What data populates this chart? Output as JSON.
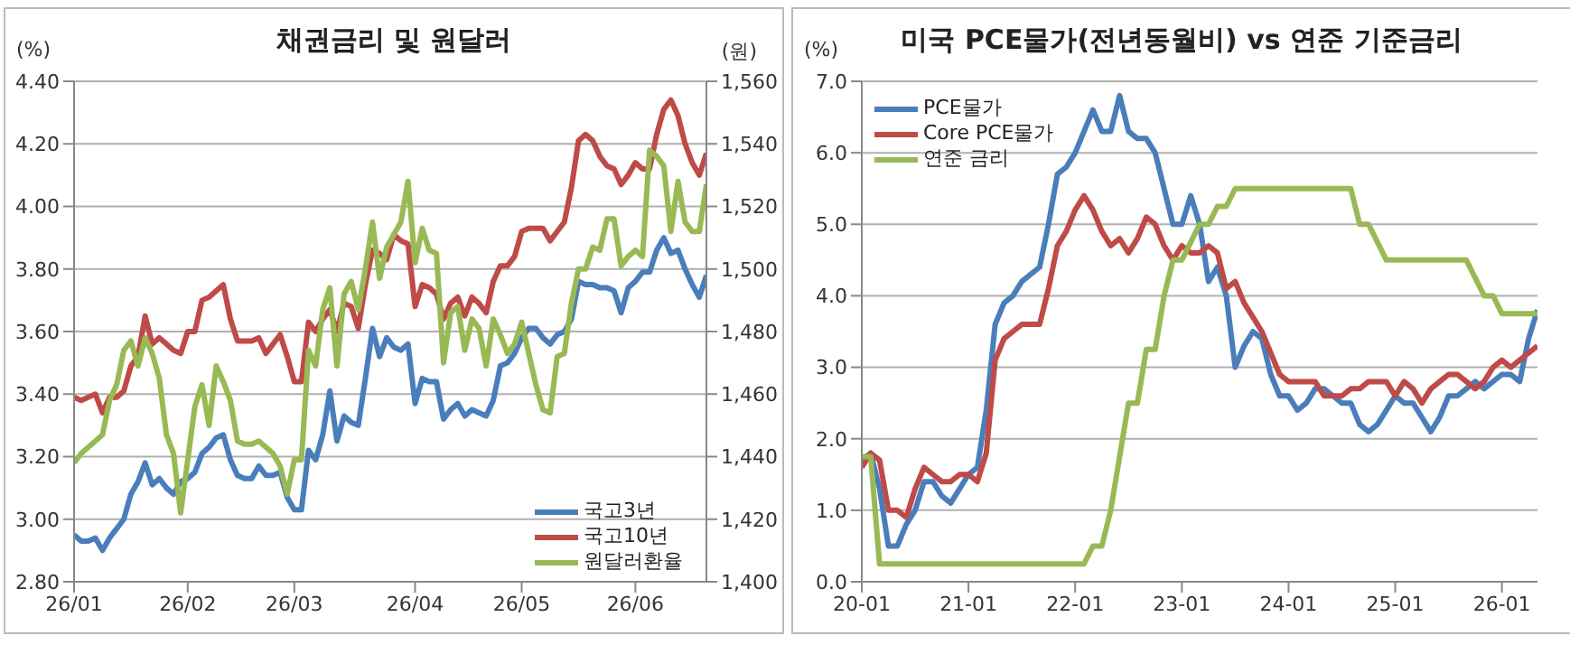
{
  "chart_data": [
    {
      "type": "line",
      "title": "채권금리 및 원달러",
      "ylabel": "(%)",
      "y2label": "(원)",
      "categories": [
        "26/01",
        null,
        null,
        null,
        null,
        null,
        null,
        null,
        null,
        null,
        null,
        null,
        null,
        null,
        null,
        null,
        "26/02",
        null,
        null,
        null,
        null,
        null,
        null,
        null,
        null,
        null,
        null,
        null,
        null,
        null,
        null,
        "26/03",
        null,
        null,
        null,
        null,
        null,
        null,
        null,
        null,
        null,
        null,
        null,
        null,
        null,
        null,
        null,
        null,
        "26/04",
        null,
        null,
        null,
        null,
        null,
        null,
        null,
        null,
        null,
        null,
        null,
        null,
        null,
        null,
        "26/05",
        null,
        null,
        null,
        null,
        null,
        null,
        null,
        null,
        null,
        null,
        null,
        null,
        null,
        null,
        null,
        "26/06",
        null,
        null,
        null,
        null,
        null,
        null,
        null,
        null,
        null,
        null
      ],
      "series": [
        {
          "name": "국고3년",
          "color": "#4a7ebb",
          "values": [
            2.95,
            2.93,
            2.93,
            2.94,
            2.9,
            2.94,
            2.97,
            3.0,
            3.08,
            3.12,
            3.18,
            3.11,
            3.13,
            3.1,
            3.08,
            3.12,
            3.13,
            3.15,
            3.21,
            3.23,
            3.26,
            3.27,
            3.19,
            3.14,
            3.13,
            3.13,
            3.17,
            3.14,
            3.14,
            3.15,
            3.07,
            3.03,
            3.03,
            3.22,
            3.19,
            3.27,
            3.41,
            3.25,
            3.33,
            3.31,
            3.3,
            3.45,
            3.61,
            3.52,
            3.58,
            3.55,
            3.54,
            3.56,
            3.37,
            3.45,
            3.44,
            3.44,
            3.32,
            3.35,
            3.37,
            3.33,
            3.35,
            3.34,
            3.33,
            3.38,
            3.49,
            3.5,
            3.53,
            3.58,
            3.61,
            3.61,
            3.58,
            3.56,
            3.59,
            3.6,
            3.64,
            3.76,
            3.75,
            3.75,
            3.74,
            3.74,
            3.73,
            3.66,
            3.74,
            3.76,
            3.79,
            3.79,
            3.86,
            3.9,
            3.85,
            3.86,
            3.8,
            3.75,
            3.71,
            3.78
          ]
        },
        {
          "name": "국고10년",
          "color": "#be4b48",
          "values": [
            3.39,
            3.38,
            3.39,
            3.4,
            3.34,
            3.39,
            3.39,
            3.41,
            3.49,
            3.52,
            3.65,
            3.56,
            3.58,
            3.56,
            3.54,
            3.53,
            3.6,
            3.6,
            3.7,
            3.71,
            3.73,
            3.75,
            3.64,
            3.57,
            3.57,
            3.57,
            3.58,
            3.53,
            3.56,
            3.59,
            3.52,
            3.44,
            3.44,
            3.63,
            3.6,
            3.64,
            3.67,
            3.6,
            3.69,
            3.68,
            3.61,
            3.75,
            3.86,
            3.85,
            3.83,
            3.91,
            3.89,
            3.88,
            3.68,
            3.75,
            3.74,
            3.72,
            3.64,
            3.69,
            3.71,
            3.65,
            3.71,
            3.69,
            3.66,
            3.76,
            3.81,
            3.81,
            3.84,
            3.92,
            3.93,
            3.93,
            3.93,
            3.89,
            3.92,
            3.95,
            4.06,
            4.21,
            4.23,
            4.21,
            4.16,
            4.13,
            4.12,
            4.07,
            4.1,
            4.14,
            4.12,
            4.12,
            4.23,
            4.31,
            4.34,
            4.29,
            4.2,
            4.14,
            4.1,
            4.17
          ]
        },
        {
          "name": "원달러환율",
          "color": "#98b954",
          "axis": "y2",
          "values": [
            1438,
            1441,
            1443,
            1445,
            1447,
            1458,
            1463,
            1474,
            1477,
            1469,
            1478,
            1473,
            1465,
            1447,
            1441,
            1422,
            1439,
            1456,
            1463,
            1450,
            1469,
            1464,
            1458,
            1445,
            1444,
            1444,
            1445,
            1443,
            1441,
            1437,
            1428,
            1439,
            1439,
            1474,
            1469,
            1487,
            1494,
            1469,
            1492,
            1496,
            1487,
            1500,
            1515,
            1497,
            1507,
            1511,
            1515,
            1528,
            1502,
            1513,
            1506,
            1505,
            1470,
            1486,
            1488,
            1474,
            1484,
            1481,
            1469,
            1484,
            1479,
            1473,
            1476,
            1483,
            1473,
            1463,
            1455,
            1454,
            1472,
            1473,
            1489,
            1500,
            1500,
            1507,
            1506,
            1516,
            1516,
            1501,
            1504,
            1506,
            1504,
            1538,
            1536,
            1533,
            1512,
            1528,
            1515,
            1512,
            1512,
            1527
          ]
        }
      ],
      "ylim": [
        2.8,
        4.4
      ],
      "yticks": [
        {
          "value": 2.8,
          "label": "2.80"
        },
        {
          "value": 3.0,
          "label": "3.00"
        },
        {
          "value": 3.2,
          "label": "3.20"
        },
        {
          "value": 3.4,
          "label": "3.40"
        },
        {
          "value": 3.6,
          "label": "3.60"
        },
        {
          "value": 3.8,
          "label": "3.80"
        },
        {
          "value": 4.0,
          "label": "4.00"
        },
        {
          "value": 4.2,
          "label": "4.20"
        },
        {
          "value": 4.4,
          "label": "4.40"
        }
      ],
      "y2lim": [
        1400,
        1560
      ],
      "y2ticks": [
        {
          "value": 1400,
          "label": "1,400"
        },
        {
          "value": 1420,
          "label": "1,420"
        },
        {
          "value": 1440,
          "label": "1,440"
        },
        {
          "value": 1460,
          "label": "1,460"
        },
        {
          "value": 1480,
          "label": "1,480"
        },
        {
          "value": 1500,
          "label": "1,500"
        },
        {
          "value": 1520,
          "label": "1,520"
        },
        {
          "value": 1540,
          "label": "1,540"
        },
        {
          "value": 1560,
          "label": "1,560"
        }
      ],
      "grid": "y",
      "legend": "bottom right",
      "marker": "none"
    },
    {
      "type": "line",
      "title": "미국 PCE물가(전년동월비) vs 연준 기준금리",
      "ylabel": "(%)",
      "categories": [
        "20-01",
        null,
        null,
        null,
        null,
        null,
        null,
        null,
        null,
        null,
        null,
        null,
        "21-01",
        null,
        null,
        null,
        null,
        null,
        null,
        null,
        null,
        null,
        null,
        null,
        "22-01",
        null,
        null,
        null,
        null,
        null,
        null,
        null,
        null,
        null,
        null,
        null,
        "23-01",
        null,
        null,
        null,
        null,
        null,
        null,
        null,
        null,
        null,
        null,
        null,
        "24-01",
        null,
        null,
        null,
        null,
        null,
        null,
        null,
        null,
        null,
        null,
        null,
        "25-01",
        null,
        null,
        null,
        null,
        null,
        null,
        null,
        null,
        null,
        null,
        null,
        "26-01",
        null,
        null,
        null,
        null
      ],
      "series": [
        {
          "name": "PCE물가",
          "color": "#4a7ebb",
          "values": [
            1.7,
            1.8,
            1.3,
            0.5,
            0.5,
            0.8,
            1.0,
            1.4,
            1.4,
            1.2,
            1.1,
            1.3,
            1.5,
            1.6,
            2.4,
            3.6,
            3.9,
            4.0,
            4.2,
            4.3,
            4.4,
            5.0,
            5.7,
            5.8,
            6.0,
            6.3,
            6.6,
            6.3,
            6.3,
            6.8,
            6.3,
            6.2,
            6.2,
            6.0,
            5.5,
            5.0,
            5.0,
            5.4,
            5.0,
            4.2,
            4.4,
            4.0,
            3.0,
            3.3,
            3.5,
            3.4,
            2.9,
            2.6,
            2.6,
            2.4,
            2.5,
            2.7,
            2.7,
            2.6,
            2.5,
            2.5,
            2.2,
            2.1,
            2.2,
            2.4,
            2.6,
            2.5,
            2.5,
            2.3,
            2.1,
            2.3,
            2.6,
            2.6,
            2.7,
            2.8,
            2.7,
            2.8,
            2.9,
            2.9,
            2.8,
            3.4,
            3.8
          ]
        },
        {
          "name": "Core PCE물가",
          "color": "#be4b48",
          "values": [
            1.6,
            1.8,
            1.7,
            1.0,
            1.0,
            0.9,
            1.3,
            1.6,
            1.5,
            1.4,
            1.4,
            1.5,
            1.5,
            1.4,
            1.8,
            3.1,
            3.4,
            3.5,
            3.6,
            3.6,
            3.6,
            4.1,
            4.7,
            4.9,
            5.2,
            5.4,
            5.2,
            4.9,
            4.7,
            4.8,
            4.6,
            4.8,
            5.1,
            5.0,
            4.7,
            4.5,
            4.7,
            4.6,
            4.6,
            4.7,
            4.6,
            4.1,
            4.2,
            3.9,
            3.7,
            3.5,
            3.2,
            2.9,
            2.8,
            2.8,
            2.8,
            2.8,
            2.6,
            2.6,
            2.6,
            2.7,
            2.7,
            2.8,
            2.8,
            2.8,
            2.6,
            2.8,
            2.7,
            2.5,
            2.7,
            2.8,
            2.9,
            2.9,
            2.8,
            2.7,
            2.8,
            3.0,
            3.1,
            3.0,
            3.1,
            3.2,
            3.3
          ]
        },
        {
          "name": "연준 금리",
          "color": "#98b954",
          "values": [
            1.75,
            1.75,
            0.25,
            0.25,
            0.25,
            0.25,
            0.25,
            0.25,
            0.25,
            0.25,
            0.25,
            0.25,
            0.25,
            0.25,
            0.25,
            0.25,
            0.25,
            0.25,
            0.25,
            0.25,
            0.25,
            0.25,
            0.25,
            0.25,
            0.25,
            0.25,
            0.5,
            0.5,
            1.0,
            1.75,
            2.5,
            2.5,
            3.25,
            3.25,
            4.0,
            4.5,
            4.5,
            4.75,
            5.0,
            5.0,
            5.25,
            5.25,
            5.5,
            5.5,
            5.5,
            5.5,
            5.5,
            5.5,
            5.5,
            5.5,
            5.5,
            5.5,
            5.5,
            5.5,
            5.5,
            5.5,
            5.0,
            5.0,
            4.75,
            4.5,
            4.5,
            4.5,
            4.5,
            4.5,
            4.5,
            4.5,
            4.5,
            4.5,
            4.5,
            4.25,
            4.0,
            4.0,
            3.75,
            3.75,
            3.75,
            3.75,
            3.75
          ]
        }
      ],
      "ylim": [
        0,
        7
      ],
      "yticks": [
        {
          "value": 0,
          "label": "0.0"
        },
        {
          "value": 1,
          "label": "1.0"
        },
        {
          "value": 2,
          "label": "2.0"
        },
        {
          "value": 3,
          "label": "3.0"
        },
        {
          "value": 4,
          "label": "4.0"
        },
        {
          "value": 5,
          "label": "5.0"
        },
        {
          "value": 6,
          "label": "6.0"
        },
        {
          "value": 7,
          "label": "7.0"
        }
      ],
      "grid": "y",
      "legend": "top left",
      "marker": "none"
    }
  ]
}
